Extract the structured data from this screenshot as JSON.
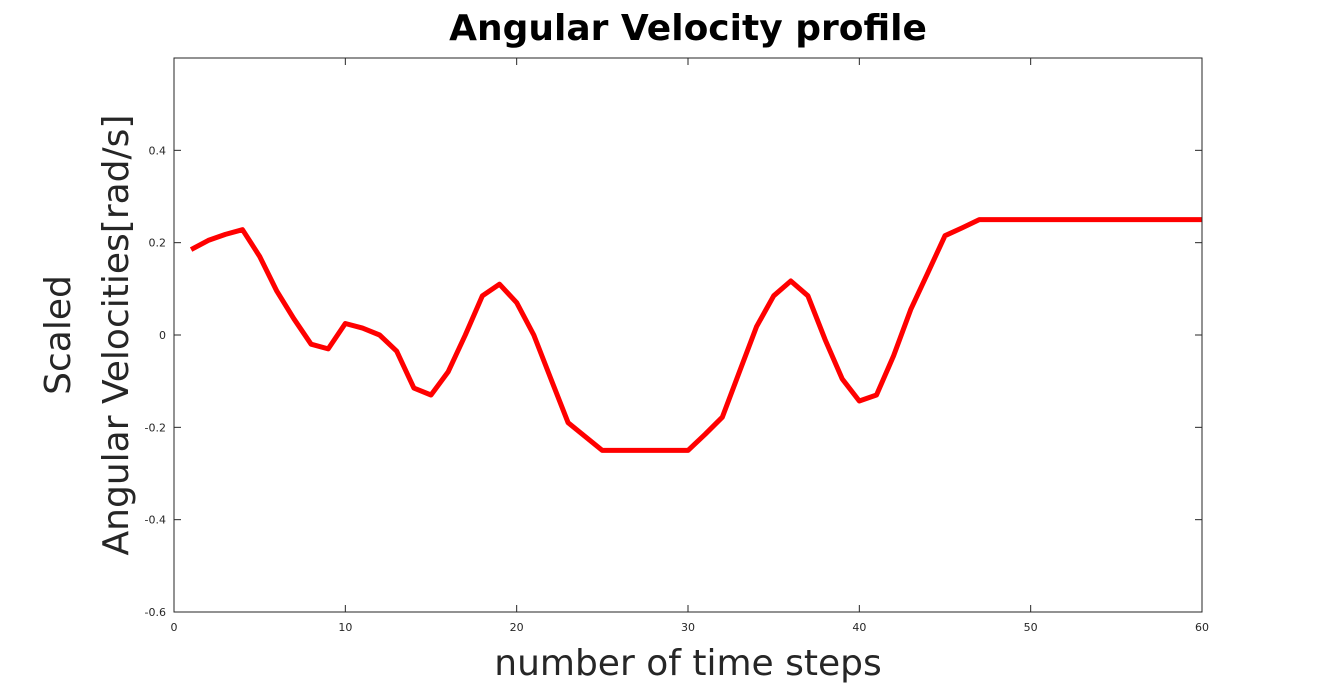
{
  "chart_data": {
    "type": "line",
    "title": "Angular Velocity profile",
    "xlabel": "number of time steps",
    "ylabel_lines": [
      "Scaled",
      "Angular Velocities[rad/s]"
    ],
    "xlim": [
      0,
      60
    ],
    "ylim": [
      -0.6,
      0.6
    ],
    "xticks": [
      0,
      10,
      20,
      30,
      40,
      50,
      60
    ],
    "xtick_labels": [
      "0",
      "10",
      "20",
      "30",
      "40",
      "50",
      "60"
    ],
    "yticks": [
      -0.6,
      -0.4,
      -0.2,
      0,
      0.2,
      0.4
    ],
    "ytick_labels": [
      "-0.6",
      "-0.4",
      "-0.2",
      "0",
      "0.2",
      "0.4"
    ],
    "grid": false,
    "legend": "none",
    "series": [
      {
        "color": "#ff0000",
        "x": [
          1,
          2,
          3,
          4,
          5,
          6,
          7,
          8,
          9,
          10,
          11,
          12,
          13,
          14,
          15,
          16,
          17,
          18,
          19,
          20,
          21,
          22,
          23,
          24,
          25,
          26,
          27,
          28,
          29,
          30,
          31,
          32,
          33,
          34,
          35,
          36,
          37,
          38,
          39,
          40,
          41,
          42,
          43,
          44,
          45,
          46,
          47,
          48,
          49,
          50,
          51,
          52,
          53,
          54,
          55,
          56,
          57,
          58,
          59,
          60
        ],
        "y": [
          0.185,
          0.205,
          0.218,
          0.228,
          0.17,
          0.095,
          0.035,
          -0.02,
          -0.03,
          0.025,
          0.015,
          0.0,
          -0.035,
          -0.115,
          -0.13,
          -0.08,
          0.0,
          0.085,
          0.11,
          0.07,
          0.0,
          -0.095,
          -0.19,
          -0.22,
          -0.25,
          -0.25,
          -0.25,
          -0.25,
          -0.25,
          -0.25,
          -0.215,
          -0.178,
          -0.08,
          0.018,
          0.085,
          0.117,
          0.085,
          -0.01,
          -0.095,
          -0.143,
          -0.13,
          -0.045,
          0.055,
          0.135,
          0.215,
          0.232,
          0.25,
          0.25,
          0.25,
          0.25,
          0.25,
          0.25,
          0.25,
          0.25,
          0.25,
          0.25,
          0.25,
          0.25,
          0.25,
          0.25
        ]
      }
    ]
  }
}
